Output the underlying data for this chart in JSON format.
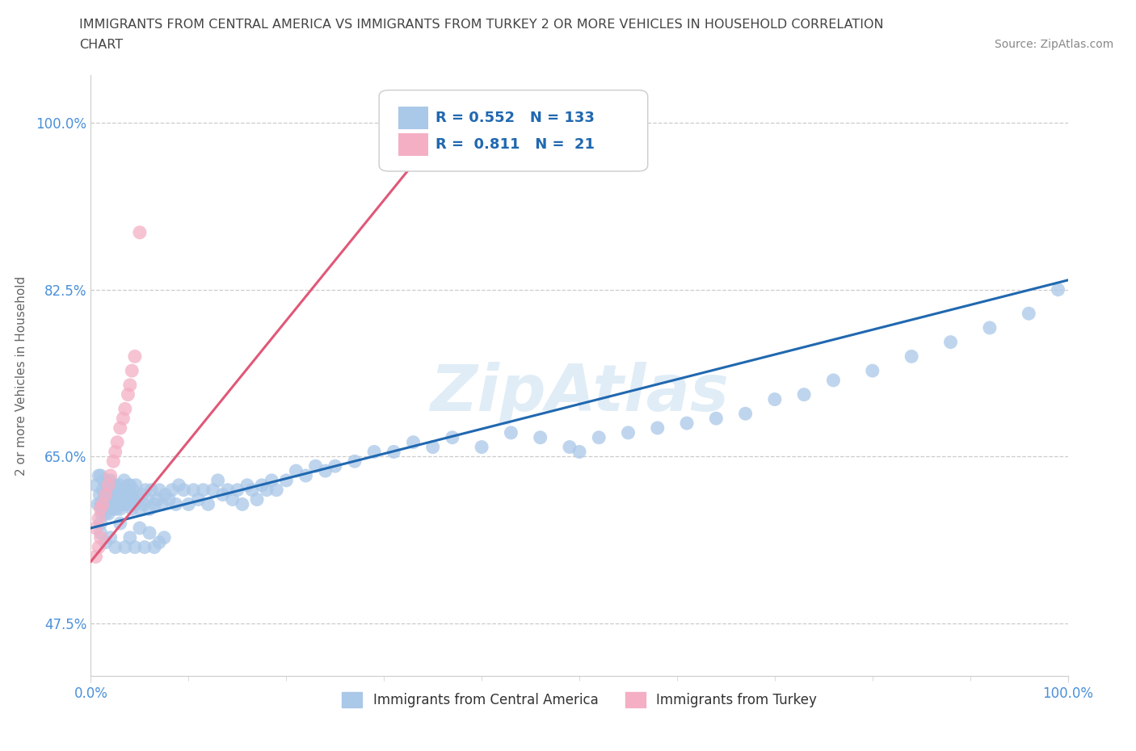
{
  "title_line1": "IMMIGRANTS FROM CENTRAL AMERICA VS IMMIGRANTS FROM TURKEY 2 OR MORE VEHICLES IN HOUSEHOLD CORRELATION",
  "title_line2": "CHART",
  "source": "Source: ZipAtlas.com",
  "ylabel": "2 or more Vehicles in Household",
  "xmin": 0.0,
  "xmax": 1.0,
  "ymin": 0.42,
  "ymax": 1.05,
  "ytick_positions": [
    0.475,
    0.65,
    0.825,
    1.0
  ],
  "ytick_labels": [
    "47.5%",
    "65.0%",
    "82.5%",
    "100.0%"
  ],
  "xtick_positions": [
    0.0,
    1.0
  ],
  "xtick_labels": [
    "0.0%",
    "100.0%"
  ],
  "r_blue": 0.552,
  "n_blue": 133,
  "r_pink": 0.811,
  "n_pink": 21,
  "blue_color": "#aac8e8",
  "pink_color": "#f4afc4",
  "blue_line_color": "#2068b0",
  "pink_line_color": "#e05878",
  "legend_label_blue": "Immigrants from Central America",
  "legend_label_pink": "Immigrants from Turkey",
  "blue_line_x0": 0.0,
  "blue_line_y0": 0.575,
  "blue_line_x1": 1.0,
  "blue_line_y1": 0.835,
  "pink_line_x0": 0.0,
  "pink_line_y0": 0.54,
  "pink_line_x1": 0.38,
  "pink_line_y1": 1.02,
  "blue_x": [
    0.005,
    0.007,
    0.008,
    0.009,
    0.01,
    0.01,
    0.01,
    0.011,
    0.012,
    0.013,
    0.013,
    0.014,
    0.015,
    0.015,
    0.016,
    0.017,
    0.018,
    0.019,
    0.02,
    0.02,
    0.021,
    0.022,
    0.023,
    0.024,
    0.025,
    0.025,
    0.026,
    0.027,
    0.028,
    0.029,
    0.03,
    0.03,
    0.031,
    0.032,
    0.033,
    0.034,
    0.035,
    0.036,
    0.037,
    0.038,
    0.039,
    0.04,
    0.04,
    0.041,
    0.042,
    0.043,
    0.044,
    0.045,
    0.046,
    0.048,
    0.05,
    0.052,
    0.054,
    0.056,
    0.058,
    0.06,
    0.062,
    0.065,
    0.068,
    0.07,
    0.073,
    0.076,
    0.08,
    0.083,
    0.087,
    0.09,
    0.095,
    0.1,
    0.105,
    0.11,
    0.115,
    0.12,
    0.125,
    0.13,
    0.135,
    0.14,
    0.145,
    0.15,
    0.155,
    0.16,
    0.165,
    0.17,
    0.175,
    0.18,
    0.185,
    0.19,
    0.2,
    0.21,
    0.22,
    0.23,
    0.24,
    0.25,
    0.27,
    0.29,
    0.31,
    0.33,
    0.35,
    0.37,
    0.4,
    0.43,
    0.46,
    0.49,
    0.52,
    0.55,
    0.58,
    0.61,
    0.64,
    0.67,
    0.7,
    0.73,
    0.76,
    0.8,
    0.84,
    0.88,
    0.92,
    0.96,
    0.99,
    0.01,
    0.015,
    0.02,
    0.025,
    0.03,
    0.035,
    0.04,
    0.045,
    0.05,
    0.055,
    0.06,
    0.065,
    0.07,
    0.075,
    0.5
  ],
  "blue_y": [
    0.62,
    0.6,
    0.63,
    0.61,
    0.58,
    0.6,
    0.63,
    0.59,
    0.615,
    0.605,
    0.625,
    0.61,
    0.59,
    0.625,
    0.6,
    0.615,
    0.59,
    0.62,
    0.6,
    0.625,
    0.605,
    0.595,
    0.615,
    0.6,
    0.605,
    0.62,
    0.595,
    0.61,
    0.6,
    0.62,
    0.595,
    0.615,
    0.61,
    0.6,
    0.615,
    0.625,
    0.6,
    0.615,
    0.605,
    0.6,
    0.62,
    0.605,
    0.62,
    0.61,
    0.595,
    0.615,
    0.605,
    0.6,
    0.62,
    0.605,
    0.595,
    0.61,
    0.6,
    0.615,
    0.605,
    0.595,
    0.615,
    0.6,
    0.605,
    0.615,
    0.6,
    0.61,
    0.605,
    0.615,
    0.6,
    0.62,
    0.615,
    0.6,
    0.615,
    0.605,
    0.615,
    0.6,
    0.615,
    0.625,
    0.61,
    0.615,
    0.605,
    0.615,
    0.6,
    0.62,
    0.615,
    0.605,
    0.62,
    0.615,
    0.625,
    0.615,
    0.625,
    0.635,
    0.63,
    0.64,
    0.635,
    0.64,
    0.645,
    0.655,
    0.655,
    0.665,
    0.66,
    0.67,
    0.66,
    0.675,
    0.67,
    0.66,
    0.67,
    0.675,
    0.68,
    0.685,
    0.69,
    0.695,
    0.71,
    0.715,
    0.73,
    0.74,
    0.755,
    0.77,
    0.785,
    0.8,
    0.825,
    0.57,
    0.56,
    0.565,
    0.555,
    0.58,
    0.555,
    0.565,
    0.555,
    0.575,
    0.555,
    0.57,
    0.555,
    0.56,
    0.565,
    0.655
  ],
  "pink_x": [
    0.005,
    0.008,
    0.01,
    0.012,
    0.015,
    0.018,
    0.02,
    0.023,
    0.025,
    0.027,
    0.03,
    0.033,
    0.035,
    0.038,
    0.04,
    0.042,
    0.045,
    0.005,
    0.008,
    0.01,
    0.05
  ],
  "pink_y": [
    0.575,
    0.585,
    0.595,
    0.6,
    0.61,
    0.62,
    0.63,
    0.645,
    0.655,
    0.665,
    0.68,
    0.69,
    0.7,
    0.715,
    0.725,
    0.74,
    0.755,
    0.545,
    0.555,
    0.565,
    0.885
  ]
}
